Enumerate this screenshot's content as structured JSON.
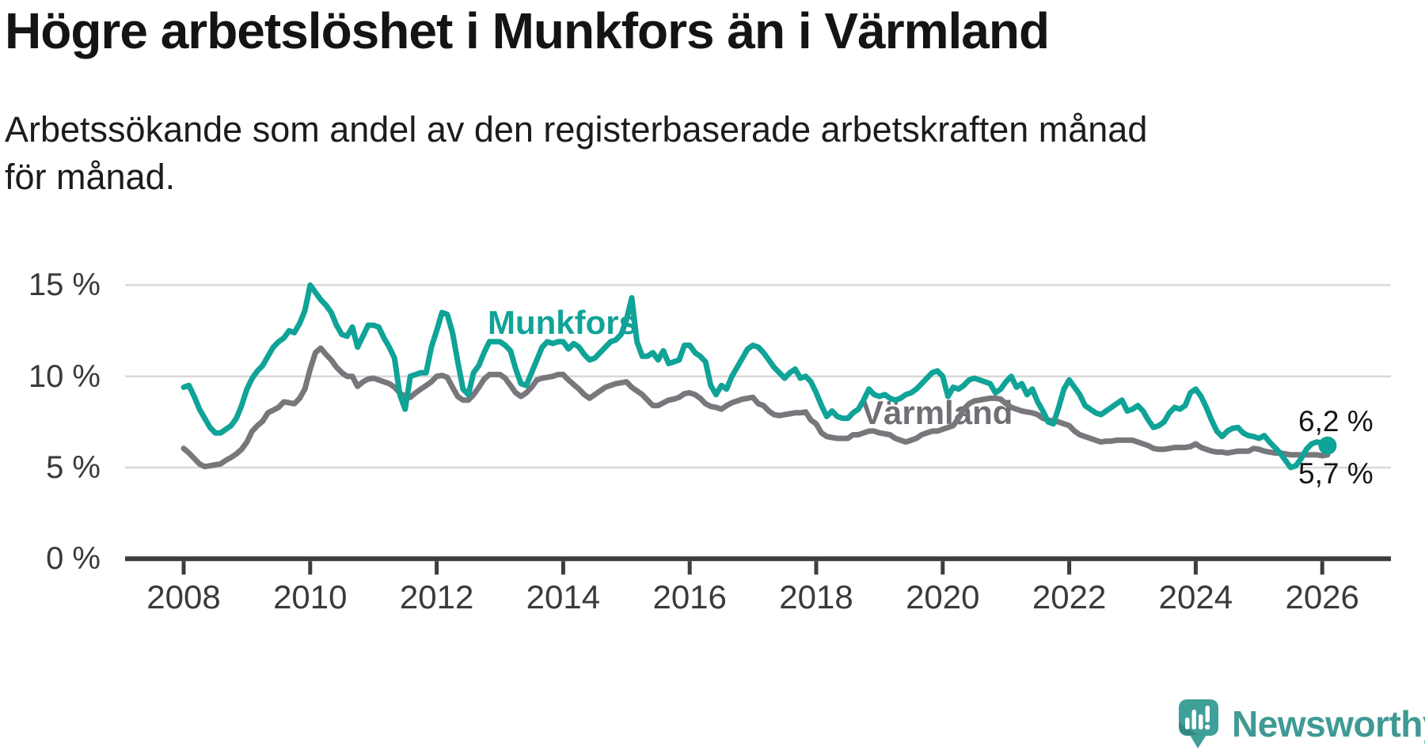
{
  "header": {
    "title": "Högre arbetslöshet i Munkfors än i Värmland",
    "subtitle": "Arbetssökande som andel av den registerbaserade arbetskraften månad för månad."
  },
  "chart_data": {
    "type": "line",
    "unit": "%",
    "x_start_year": 2008,
    "x_start_month": 1,
    "points_per_year": 12,
    "x_end": "2026-02",
    "ylim": [
      0,
      15.5
    ],
    "grid": "horizontal",
    "legend_position": "inline-labels",
    "y_ticks": [
      {
        "value": 0,
        "label": "0 %"
      },
      {
        "value": 5,
        "label": "5 %"
      },
      {
        "value": 10,
        "label": "10 %"
      },
      {
        "value": 15,
        "label": "15 %"
      }
    ],
    "x_ticks": [
      "2008",
      "2010",
      "2012",
      "2014",
      "2016",
      "2018",
      "2020",
      "2022",
      "2024",
      "2026"
    ],
    "colors": {
      "grid": "#d9d9d9",
      "axis": "#3d3d3d",
      "tick_text": "#3a3a3a",
      "munkfors": "#10a397",
      "varmland": "#77777c"
    },
    "series": [
      {
        "name": "Munkfors",
        "color": "#10a397",
        "end_label": "6,2 %",
        "end_value": 6.2,
        "end_dot": true,
        "values": [
          9.4,
          9.5,
          8.9,
          8.2,
          7.7,
          7.2,
          6.9,
          6.9,
          7.1,
          7.3,
          7.7,
          8.4,
          9.3,
          9.9,
          10.3,
          10.6,
          11.1,
          11.6,
          11.9,
          12.1,
          12.5,
          12.4,
          12.9,
          13.6,
          15.0,
          14.6,
          14.2,
          13.9,
          13.5,
          12.8,
          12.3,
          12.2,
          12.7,
          11.6,
          12.2,
          12.8,
          12.8,
          12.7,
          12.1,
          11.6,
          11.0,
          9.0,
          8.2,
          10.0,
          10.1,
          10.2,
          10.2,
          11.6,
          12.5,
          13.5,
          13.4,
          12.4,
          10.8,
          9.3,
          9.0,
          10.2,
          10.6,
          11.3,
          11.9,
          11.9,
          11.9,
          11.7,
          11.4,
          10.4,
          9.6,
          9.5,
          10.2,
          10.9,
          11.6,
          11.9,
          11.8,
          11.9,
          11.9,
          11.5,
          11.8,
          11.6,
          11.2,
          10.9,
          11.0,
          11.3,
          11.6,
          11.9,
          12.0,
          12.3,
          13.1,
          14.3,
          11.9,
          11.1,
          11.1,
          11.3,
          10.9,
          11.4,
          10.7,
          10.8,
          10.9,
          11.7,
          11.7,
          11.3,
          11.1,
          10.8,
          9.5,
          9.0,
          9.5,
          9.3,
          10.0,
          10.5,
          11.0,
          11.5,
          11.7,
          11.6,
          11.3,
          10.9,
          10.5,
          10.2,
          9.9,
          10.2,
          10.4,
          9.9,
          10.0,
          9.7,
          9.1,
          8.4,
          7.8,
          8.1,
          7.8,
          7.7,
          7.7,
          8.0,
          8.2,
          8.7,
          9.3,
          9.0,
          8.9,
          9.0,
          8.8,
          8.7,
          8.8,
          9.0,
          9.1,
          9.3,
          9.6,
          9.9,
          10.2,
          10.3,
          10.0,
          8.9,
          9.4,
          9.3,
          9.5,
          9.8,
          9.9,
          9.8,
          9.7,
          9.6,
          9.1,
          9.3,
          9.7,
          10.0,
          9.4,
          9.6,
          9.0,
          9.3,
          8.6,
          8.1,
          7.5,
          7.4,
          8.3,
          9.3,
          9.8,
          9.4,
          9.0,
          8.4,
          8.2,
          8.0,
          7.9,
          8.1,
          8.3,
          8.5,
          8.7,
          8.1,
          8.2,
          8.4,
          8.1,
          7.6,
          7.2,
          7.3,
          7.5,
          8.0,
          8.3,
          8.2,
          8.4,
          9.1,
          9.3,
          8.9,
          8.3,
          7.6,
          7.0,
          6.7,
          7.0,
          7.15,
          7.2,
          6.9,
          6.75,
          6.7,
          6.6,
          6.75,
          6.4,
          6.1,
          5.8,
          5.4,
          5.0,
          5.1,
          5.5,
          6.0,
          6.3,
          6.4,
          6.35,
          6.2
        ]
      },
      {
        "name": "Värmland",
        "color": "#77777c",
        "end_label": "5,7 %",
        "end_value": 5.7,
        "end_dot": false,
        "values": [
          6.05,
          5.8,
          5.5,
          5.2,
          5.05,
          5.1,
          5.15,
          5.2,
          5.4,
          5.55,
          5.75,
          6.0,
          6.4,
          7.0,
          7.3,
          7.55,
          8.0,
          8.15,
          8.3,
          8.6,
          8.55,
          8.5,
          8.8,
          9.3,
          10.4,
          11.3,
          11.55,
          11.2,
          10.9,
          10.5,
          10.2,
          10.0,
          10.0,
          9.45,
          9.7,
          9.85,
          9.9,
          9.8,
          9.7,
          9.6,
          9.4,
          9.1,
          8.9,
          8.85,
          9.1,
          9.3,
          9.5,
          9.7,
          10.0,
          10.05,
          9.95,
          9.4,
          8.9,
          8.7,
          8.7,
          9.0,
          9.4,
          9.85,
          10.1,
          10.1,
          10.1,
          9.9,
          9.5,
          9.1,
          8.9,
          9.1,
          9.4,
          9.8,
          9.9,
          9.95,
          10.0,
          10.1,
          10.1,
          9.8,
          9.55,
          9.3,
          9.0,
          8.8,
          9.0,
          9.2,
          9.4,
          9.5,
          9.6,
          9.65,
          9.7,
          9.4,
          9.2,
          9.0,
          8.7,
          8.4,
          8.4,
          8.55,
          8.7,
          8.75,
          8.85,
          9.05,
          9.1,
          9.0,
          8.8,
          8.5,
          8.35,
          8.3,
          8.2,
          8.4,
          8.55,
          8.65,
          8.75,
          8.8,
          8.85,
          8.5,
          8.4,
          8.1,
          7.9,
          7.85,
          7.9,
          7.95,
          8.0,
          8.0,
          8.05,
          7.6,
          7.4,
          6.9,
          6.7,
          6.65,
          6.6,
          6.6,
          6.6,
          6.8,
          6.8,
          6.9,
          7.0,
          7.0,
          6.9,
          6.85,
          6.8,
          6.6,
          6.5,
          6.4,
          6.5,
          6.6,
          6.8,
          6.9,
          7.0,
          7.0,
          7.1,
          7.2,
          7.3,
          7.7,
          8.2,
          8.5,
          8.65,
          8.7,
          8.75,
          8.8,
          8.8,
          8.75,
          8.5,
          8.3,
          8.2,
          8.1,
          8.05,
          8.0,
          7.9,
          7.7,
          7.6,
          7.55,
          7.5,
          7.4,
          7.3,
          7.0,
          6.8,
          6.7,
          6.6,
          6.5,
          6.4,
          6.45,
          6.45,
          6.5,
          6.5,
          6.5,
          6.5,
          6.4,
          6.3,
          6.2,
          6.05,
          6.0,
          6.0,
          6.05,
          6.1,
          6.1,
          6.1,
          6.15,
          6.3,
          6.1,
          6.0,
          5.9,
          5.85,
          5.85,
          5.8,
          5.85,
          5.9,
          5.9,
          5.9,
          6.05,
          6.0,
          5.9,
          5.85,
          5.8,
          5.8,
          5.75,
          5.7,
          5.7,
          5.7,
          5.7,
          5.7,
          5.7,
          5.65,
          5.7
        ]
      }
    ]
  },
  "annotations": {
    "munkfors_label": "Munkfors",
    "varmland_label": "Värmland",
    "end_label_munkfors": "6,2 %",
    "end_label_varmland": "5,7 %"
  },
  "logo": {
    "text": "Newsworthy",
    "icon": "newsworthy-chart-bubble-icon",
    "color": "#3f9a94"
  }
}
